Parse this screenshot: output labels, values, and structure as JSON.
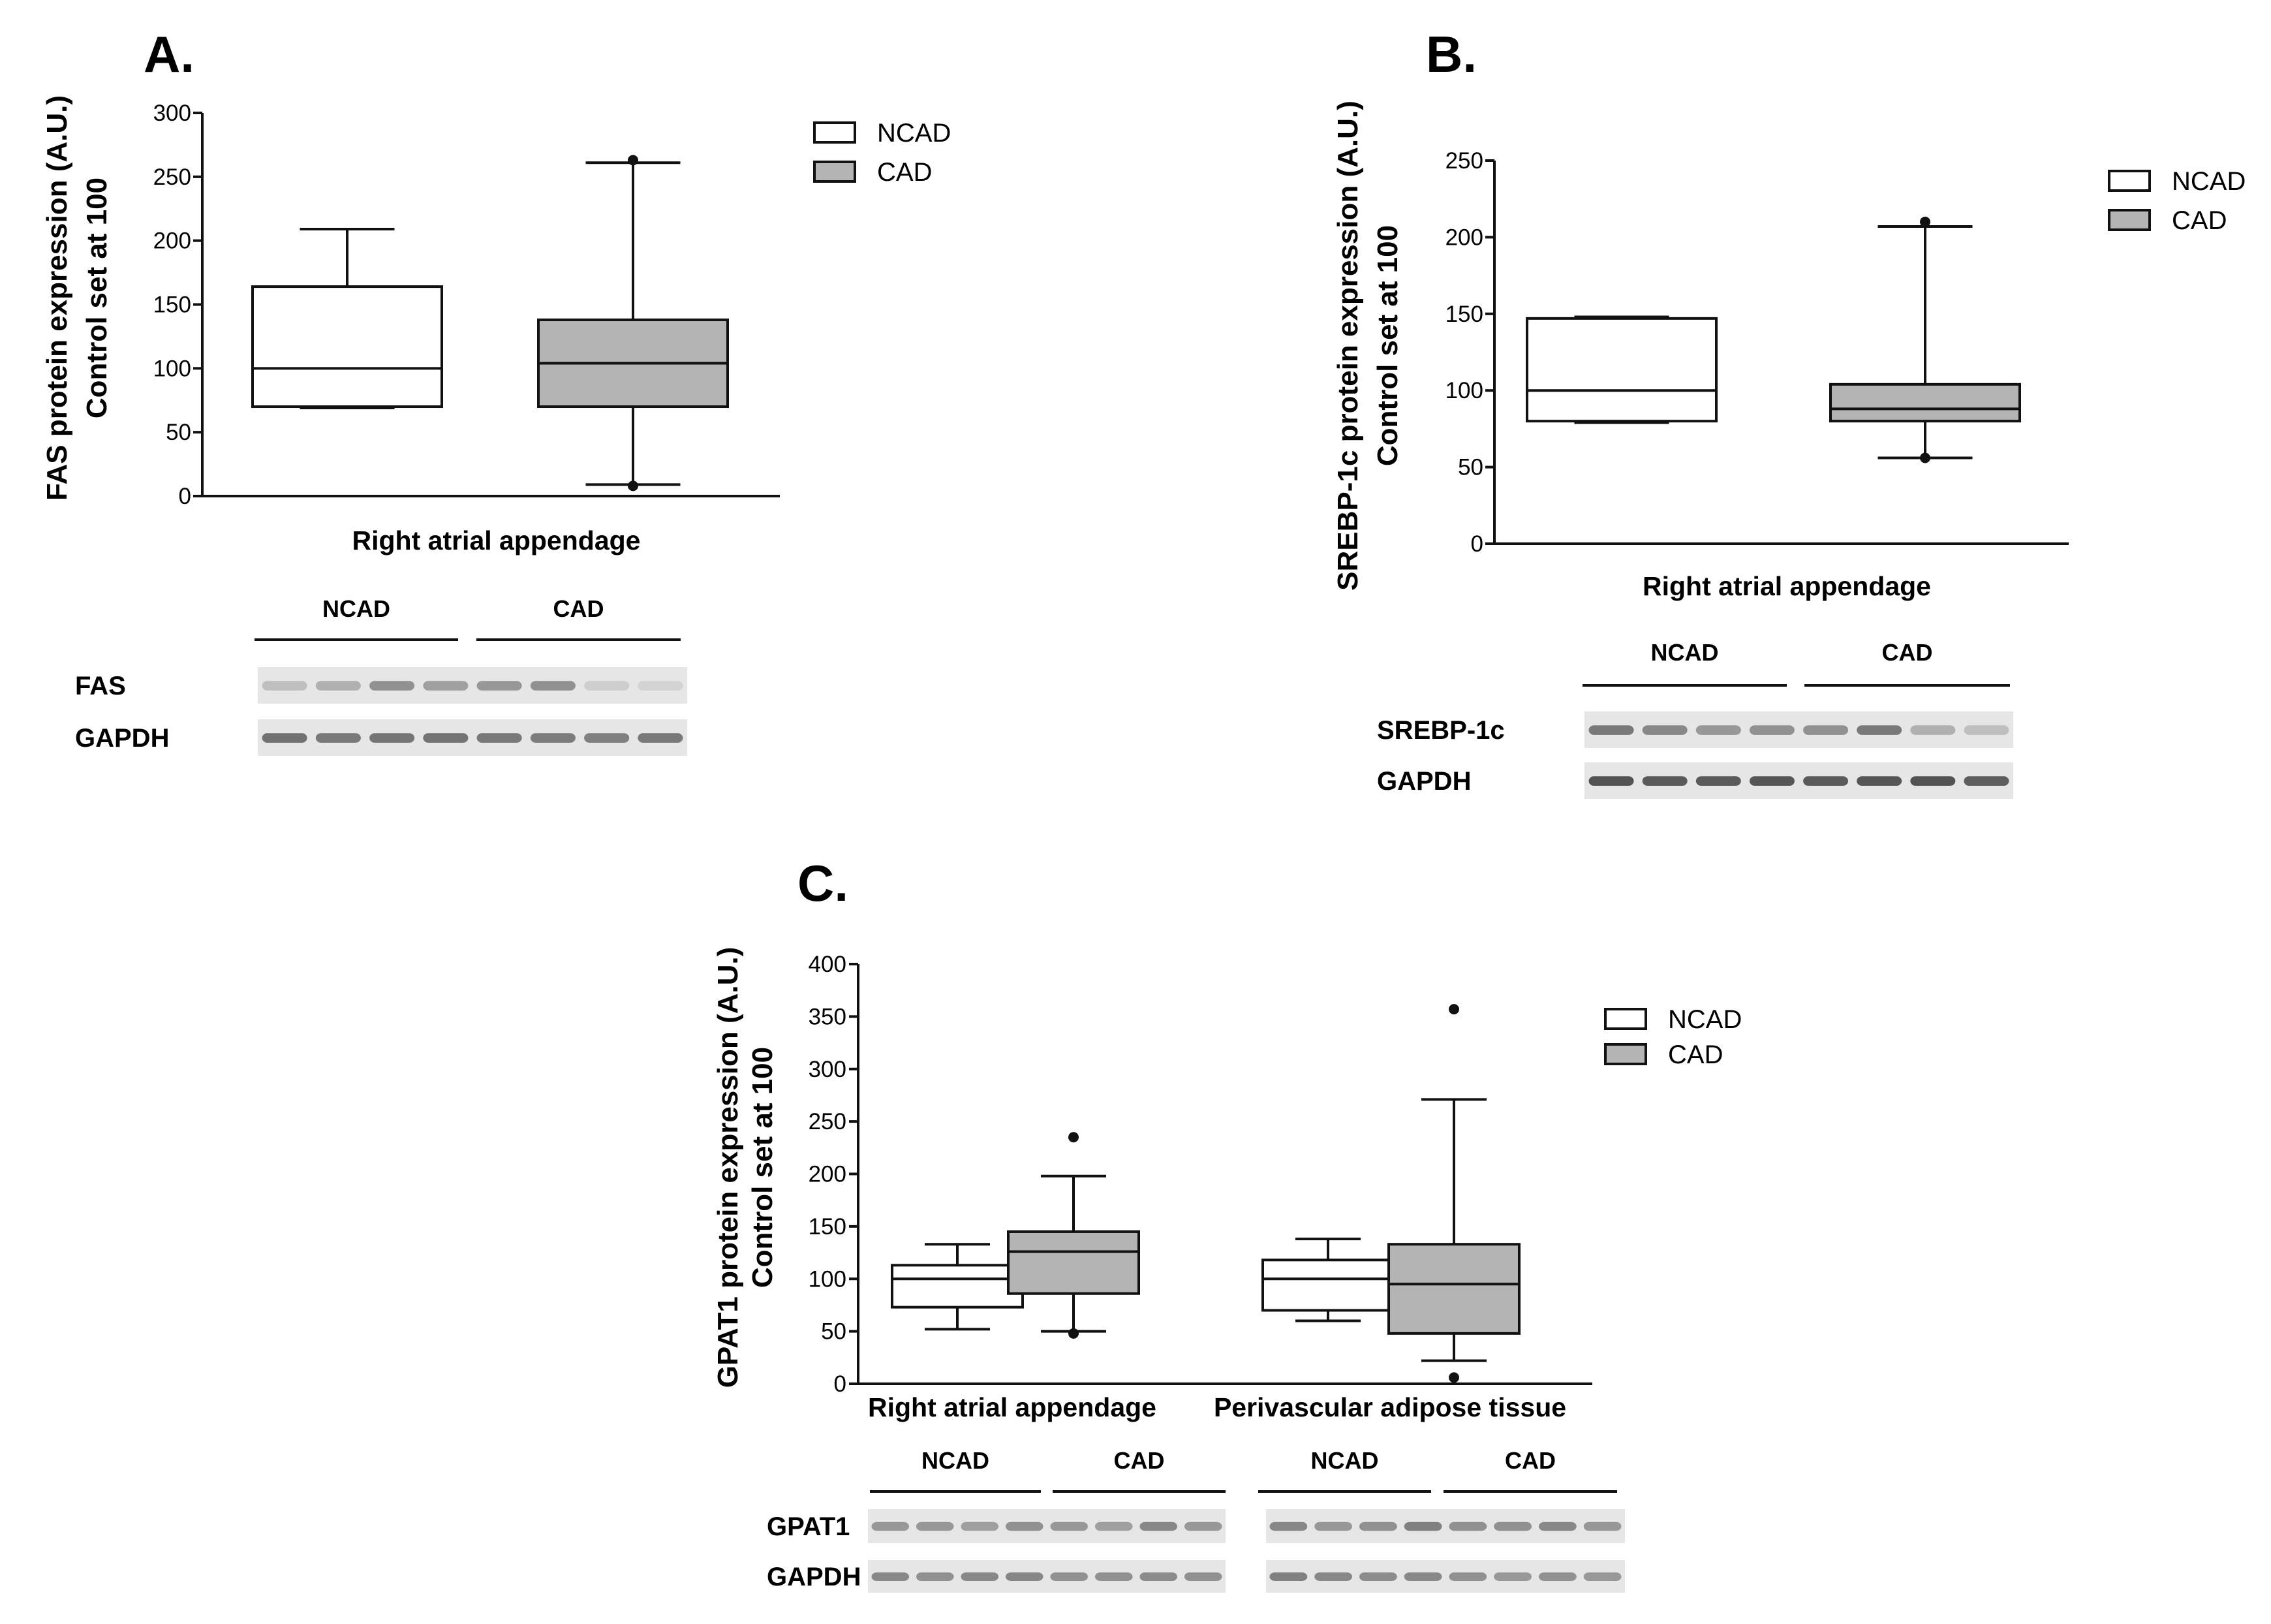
{
  "colors": {
    "ncad": "#ffffff",
    "cad": "#b4b4b4",
    "stroke": "#111111",
    "blot_bg": "#e6e6e6",
    "band": "#4a4a4a"
  },
  "chart_data": [
    {
      "type": "box",
      "panel": "A.",
      "ylabel_lines": [
        "FAS protein expression (A.U.)",
        "Control set at 100"
      ],
      "xlabel": "Right atrial appendage",
      "ylim": [
        0,
        300
      ],
      "yticks": [
        0,
        50,
        100,
        150,
        200,
        250,
        300
      ],
      "legend": [
        "NCAD",
        "CAD"
      ],
      "legend_position": "top-right",
      "categories": [
        "Right atrial appendage"
      ],
      "series": [
        {
          "name": "NCAD",
          "boxes": [
            {
              "whisker_low": 69,
              "q1": 70,
              "median": 100,
              "q3": 164,
              "whisker_high": 209,
              "outliers": []
            }
          ]
        },
        {
          "name": "CAD",
          "boxes": [
            {
              "whisker_low": 9,
              "q1": 70,
              "median": 104,
              "q3": 138,
              "whisker_high": 261,
              "outliers": [
                263,
                8
              ]
            }
          ]
        }
      ],
      "blot": {
        "groups": [
          "NCAD",
          "CAD"
        ],
        "rows": [
          "FAS",
          "GAPDH"
        ],
        "lanes": 8,
        "intensities": [
          [
            0.25,
            0.35,
            0.55,
            0.45,
            0.5,
            0.55,
            0.15,
            0.12
          ],
          [
            0.75,
            0.7,
            0.72,
            0.74,
            0.7,
            0.68,
            0.66,
            0.7
          ]
        ]
      }
    },
    {
      "type": "box",
      "panel": "B.",
      "ylabel_lines": [
        "SREBP-1c protein expression (A.U.)",
        "Control set at 100"
      ],
      "xlabel": "Right atrial appendage",
      "ylim": [
        0,
        250
      ],
      "yticks": [
        0,
        50,
        100,
        150,
        200,
        250
      ],
      "legend": [
        "NCAD",
        "CAD"
      ],
      "legend_position": "top-right",
      "categories": [
        "Right atrial appendage"
      ],
      "series": [
        {
          "name": "NCAD",
          "boxes": [
            {
              "whisker_low": 79,
              "q1": 80,
              "median": 100,
              "q3": 147,
              "whisker_high": 148,
              "outliers": []
            }
          ]
        },
        {
          "name": "CAD",
          "boxes": [
            {
              "whisker_low": 56,
              "q1": 80,
              "median": 88,
              "q3": 104,
              "whisker_high": 207,
              "outliers": [
                210,
                56
              ]
            }
          ]
        }
      ],
      "blot": {
        "groups": [
          "NCAD",
          "CAD"
        ],
        "rows": [
          "SREBP-1c",
          "GAPDH"
        ],
        "lanes": 8,
        "intensities": [
          [
            0.7,
            0.6,
            0.5,
            0.55,
            0.55,
            0.7,
            0.35,
            0.25
          ],
          [
            0.95,
            0.9,
            0.9,
            0.92,
            0.9,
            0.92,
            0.95,
            0.88
          ]
        ]
      }
    },
    {
      "type": "box",
      "panel": "C.",
      "ylabel_lines": [
        "GPAT1 protein expression (A.U.)",
        "Control set at 100"
      ],
      "ylim": [
        0,
        400
      ],
      "yticks": [
        0,
        50,
        100,
        150,
        200,
        250,
        300,
        350,
        400
      ],
      "legend": [
        "NCAD",
        "CAD"
      ],
      "legend_position": "top-right",
      "categories": [
        "Right atrial appendage",
        "Perivascular adipose tissue"
      ],
      "series": [
        {
          "name": "NCAD",
          "boxes": [
            {
              "whisker_low": 52,
              "q1": 73,
              "median": 100,
              "q3": 113,
              "whisker_high": 133,
              "outliers": []
            },
            {
              "whisker_low": 60,
              "q1": 70,
              "median": 100,
              "q3": 118,
              "whisker_high": 138,
              "outliers": []
            }
          ]
        },
        {
          "name": "CAD",
          "boxes": [
            {
              "whisker_low": 50,
              "q1": 86,
              "median": 126,
              "q3": 145,
              "whisker_high": 198,
              "outliers": [
                235,
                48
              ]
            },
            {
              "whisker_low": 22,
              "q1": 48,
              "median": 95,
              "q3": 133,
              "whisker_high": 271,
              "outliers": [
                357,
                6
              ]
            }
          ]
        }
      ],
      "blot": {
        "groups": [
          "NCAD",
          "CAD",
          "NCAD",
          "CAD"
        ],
        "rows": [
          "GPAT1",
          "GAPDH"
        ],
        "lanes": 16,
        "intensities": [
          [
            0.5,
            0.5,
            0.45,
            0.55,
            0.5,
            0.45,
            0.6,
            0.5,
            0.6,
            0.5,
            0.55,
            0.65,
            0.55,
            0.55,
            0.6,
            0.5
          ],
          [
            0.6,
            0.55,
            0.6,
            0.62,
            0.55,
            0.55,
            0.58,
            0.55,
            0.65,
            0.6,
            0.58,
            0.6,
            0.55,
            0.5,
            0.55,
            0.5
          ]
        ]
      }
    }
  ]
}
